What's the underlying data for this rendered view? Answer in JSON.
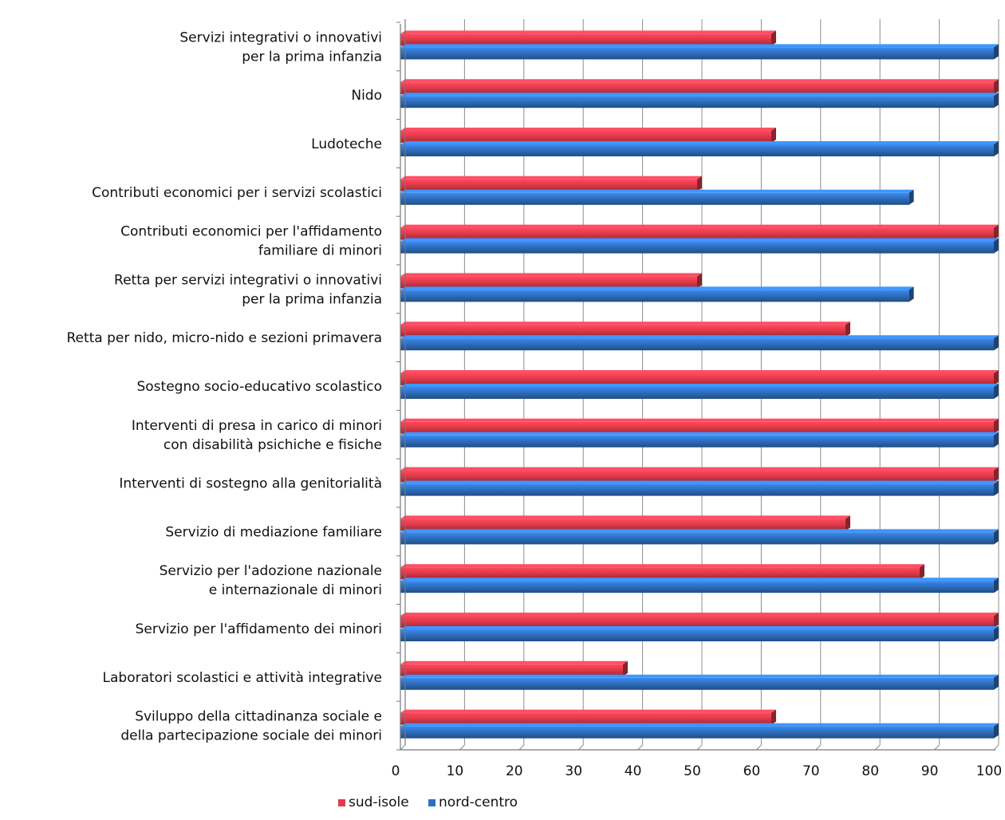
{
  "chart_data": {
    "type": "bar",
    "orientation": "horizontal",
    "categories": [
      [
        "Servizi integrativi o innovativi",
        "per la prima infanzia"
      ],
      [
        "Nido"
      ],
      [
        "Ludoteche"
      ],
      [
        "Contributi economici per i servizi scolastici"
      ],
      [
        "Contributi economici per l'affidamento",
        "familiare di minori"
      ],
      [
        "Retta per servizi integrativi o innovativi",
        " per la prima infanzia"
      ],
      [
        "Retta per nido, micro-nido e sezioni primavera"
      ],
      [
        "Sostegno socio-educativo scolastico"
      ],
      [
        "Interventi di presa in carico di minori",
        "con disabilità psichiche e fisiche"
      ],
      [
        "Interventi di sostegno alla genitorialità"
      ],
      [
        "Servizio di mediazione familiare"
      ],
      [
        "Servizio per l'adozione nazionale",
        "e internazionale di minori"
      ],
      [
        "Servizio per l'affidamento dei minori"
      ],
      [
        "Laboratori scolastici e attività integrative"
      ],
      [
        "Sviluppo della cittadinanza sociale e",
        "della partecipazione sociale dei minori"
      ]
    ],
    "series": [
      {
        "name": "sud-isole",
        "color": "#e23a4a",
        "values": [
          62.5,
          100,
          62.5,
          50,
          100,
          50,
          75,
          100,
          100,
          100,
          75,
          87.5,
          100,
          37.5,
          62.5
        ]
      },
      {
        "name": "nord-centro",
        "color": "#2f6fc0",
        "values": [
          100,
          100,
          100,
          85.7,
          100,
          85.7,
          100,
          100,
          100,
          100,
          100,
          100,
          100,
          100,
          100
        ]
      }
    ],
    "xlim": [
      0,
      100
    ],
    "xticks": [
      "0",
      "10",
      "20",
      "30",
      "40",
      "50",
      "60",
      "70",
      "80",
      "90",
      "100"
    ],
    "grid": true,
    "legend_position": "bottom-center",
    "title": "",
    "xlabel": "",
    "ylabel": ""
  }
}
